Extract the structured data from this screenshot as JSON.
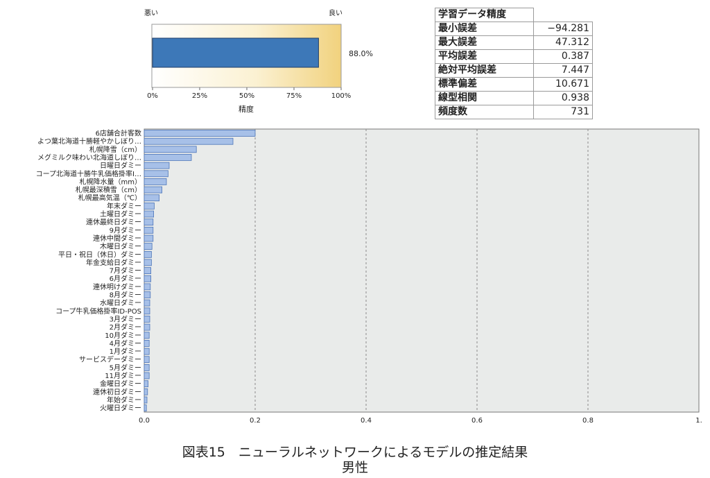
{
  "gauge": {
    "left_label": "悪い",
    "right_label": "良い",
    "value_pct": 88.0,
    "value_label": "88.0%",
    "ticks": [
      "0%",
      "25%",
      "50%",
      "75%",
      "100%"
    ],
    "xlabel": "精度",
    "fill_color": "#3d78b8"
  },
  "stats_table": {
    "title": "学習データ精度",
    "rows": [
      {
        "label": "最小誤差",
        "value": "−94.281"
      },
      {
        "label": "最大誤差",
        "value": "47.312"
      },
      {
        "label": "平均誤差",
        "value": "0.387"
      },
      {
        "label": "絶対平均誤差",
        "value": "7.447"
      },
      {
        "label": "標準偏差",
        "value": "10.671"
      },
      {
        "label": "線型相関",
        "value": "0.938"
      },
      {
        "label": "頻度数",
        "value": "731"
      }
    ]
  },
  "chart_data": {
    "type": "bar",
    "orientation": "horizontal",
    "xlim": [
      0,
      1.0
    ],
    "ticks": [
      "0.0",
      "0.2",
      "0.4",
      "0.6",
      "0.8",
      "1."
    ],
    "grid": "vertical dashed",
    "bar_color": "#a7c0e8",
    "bar_edge_color": "#4b74b8",
    "categories": [
      "6店舗合計客数",
      "よつ葉北海道十勝軽やかしぼり…",
      "札幌降雪（cm）",
      "メグミルク味わい北海道しぼり…",
      "日曜日ダミー",
      "コープ北海道十勝牛乳価格掛率I…",
      "札幌降水量（mm）",
      "札幌最深積雪（cm）",
      "札幌最高気温（℃）",
      "年末ダミー",
      "土曜日ダミー",
      "連休最終日ダミー",
      "9月ダミー",
      "連休中間ダミー",
      "木曜日ダミー",
      "平日・祝日（休日）ダミー",
      "年金支給日ダミー",
      "7月ダミー",
      "6月ダミー",
      "連休明けダミー",
      "8月ダミー",
      "水曜日ダミー",
      "コープ牛乳価格掛率ID-POS",
      "3月ダミー",
      "2月ダミー",
      "10月ダミー",
      "4月ダミー",
      "1月ダミー",
      "サービスデーダミー",
      "5月ダミー",
      "11月ダミー",
      "金曜日ダミー",
      "連休初日ダミー",
      "年始ダミー",
      "火曜日ダミー"
    ],
    "values": [
      0.2,
      0.16,
      0.094,
      0.085,
      0.045,
      0.043,
      0.04,
      0.032,
      0.027,
      0.018,
      0.017,
      0.016,
      0.016,
      0.016,
      0.014,
      0.013,
      0.013,
      0.012,
      0.012,
      0.011,
      0.011,
      0.01,
      0.01,
      0.01,
      0.01,
      0.009,
      0.009,
      0.009,
      0.009,
      0.009,
      0.009,
      0.007,
      0.006,
      0.005,
      0.004
    ]
  },
  "caption": {
    "line1": "図表15　ニューラルネットワークによるモデルの推定結果",
    "line2": "男性"
  }
}
